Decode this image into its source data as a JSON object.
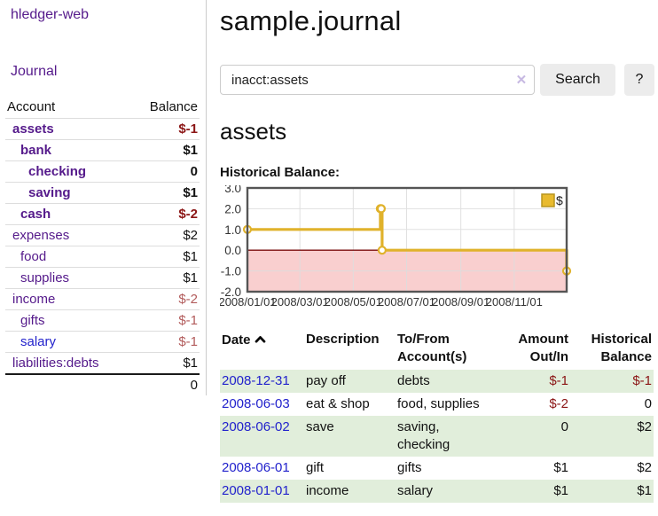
{
  "colors": {
    "accent_link_purple": "#551a8b",
    "link_blue": "#2222cc",
    "negative_red": "#8b1515",
    "negative_muted": "#b25b5b",
    "row_green": "#e1eedb",
    "button_gray": "#ececec"
  },
  "sidebar": {
    "brand": "hledger-web",
    "journal_link": "Journal",
    "accounts": {
      "headers": {
        "account": "Account",
        "balance": "Balance"
      },
      "rows": [
        {
          "label": "assets",
          "balance": "$-1"
        },
        {
          "label": "bank",
          "balance": "$1"
        },
        {
          "label": "checking",
          "balance": "0"
        },
        {
          "label": "saving",
          "balance": "$1"
        },
        {
          "label": "cash",
          "balance": "$-2"
        },
        {
          "label": "expenses",
          "balance": "$2"
        },
        {
          "label": "food",
          "balance": "$1"
        },
        {
          "label": "supplies",
          "balance": "$1"
        },
        {
          "label": "income",
          "balance": "$-2"
        },
        {
          "label": "gifts",
          "balance": "$-1"
        },
        {
          "label": "salary",
          "balance": "$-1"
        },
        {
          "label": "liabilities:debts",
          "balance": "$1"
        }
      ],
      "total": "0"
    }
  },
  "header": {
    "title": "sample.journal"
  },
  "search": {
    "value": "inacct:assets",
    "clear_label": "✕",
    "button": "Search",
    "help": "?"
  },
  "account_page": {
    "title": "assets",
    "chart_label": "Historical Balance:"
  },
  "chart_data": {
    "type": "line",
    "step": true,
    "series_name": "$",
    "legend": [
      {
        "label": "$",
        "color": "#e8ba2e"
      }
    ],
    "ylim": [
      -2,
      3
    ],
    "y_ticks": [
      "3.0",
      "2.0",
      "1.0",
      "0.0",
      "-1.0",
      "-2.0"
    ],
    "y_tick_values": [
      3,
      2,
      1,
      0,
      -1,
      -2
    ],
    "x_domain_days": [
      0,
      365
    ],
    "x_ticks": [
      {
        "label": "2008/01/01",
        "day": 0
      },
      {
        "label": "2008/03/01",
        "day": 60
      },
      {
        "label": "2008/05/01",
        "day": 121
      },
      {
        "label": "2008/07/01",
        "day": 182
      },
      {
        "label": "2008/09/01",
        "day": 244
      },
      {
        "label": "2008/11/01",
        "day": 305
      }
    ],
    "points": [
      {
        "date": "2008-01-01",
        "day": 0,
        "value": 1
      },
      {
        "date": "2008-06-01",
        "day": 152,
        "value": 2
      },
      {
        "date": "2008-06-02",
        "day": 153,
        "value": 2
      },
      {
        "date": "2008-06-03",
        "day": 154,
        "value": 0
      },
      {
        "date": "2008-12-31",
        "day": 365,
        "value": -1
      }
    ],
    "line_color": "#e0b22b",
    "marker_fill": "#ffffff",
    "negative_fill": "#f9cfcf",
    "zero_line_color": "#7a0d0d",
    "grid_color": "#dddddd",
    "border_color": "#555555"
  },
  "register": {
    "headers": {
      "date": "Date",
      "description": "Description",
      "accounts": "To/From Account(s)",
      "amount": "Amount Out/In",
      "balance": "Historical Balance"
    },
    "rows": [
      {
        "date": "2008-12-31",
        "description": "pay off",
        "accounts": "debts",
        "amount": "$-1",
        "balance": "$-1"
      },
      {
        "date": "2008-06-03",
        "description": "eat & shop",
        "accounts": "food, supplies",
        "amount": "$-2",
        "balance": "0"
      },
      {
        "date": "2008-06-02",
        "description": "save",
        "accounts": "saving, checking",
        "amount": "0",
        "balance": "$2"
      },
      {
        "date": "2008-06-01",
        "description": "gift",
        "accounts": "gifts",
        "amount": "$1",
        "balance": "$2"
      },
      {
        "date": "2008-01-01",
        "description": "income",
        "accounts": "salary",
        "amount": "$1",
        "balance": "$1"
      }
    ]
  }
}
